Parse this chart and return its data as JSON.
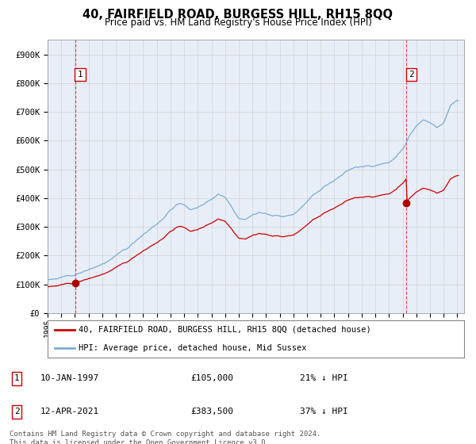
{
  "title": "40, FAIRFIELD ROAD, BURGESS HILL, RH15 8QQ",
  "subtitle": "Price paid vs. HM Land Registry's House Price Index (HPI)",
  "sale1_year": 1997.042,
  "sale1_value": 105000,
  "sale1_label": "1",
  "sale1_annotation": "10-JAN-1997",
  "sale1_price": "£105,000",
  "sale1_hpi": "21% ↓ HPI",
  "sale2_year": 2021.28,
  "sale2_value": 383500,
  "sale2_label": "2",
  "sale2_annotation": "12-APR-2021",
  "sale2_price": "£383,500",
  "sale2_hpi": "37% ↓ HPI",
  "vline_color": "#cc0000",
  "hpi_color": "#7aadd4",
  "price_color": "#cc0000",
  "dot_color": "#aa0000",
  "ylim": [
    0,
    950000
  ],
  "xlim": [
    1995.0,
    2025.5
  ],
  "ytick_labels": [
    "£0",
    "£100K",
    "£200K",
    "£300K",
    "£400K",
    "£500K",
    "£600K",
    "£700K",
    "£800K",
    "£900K"
  ],
  "ytick_values": [
    0,
    100000,
    200000,
    300000,
    400000,
    500000,
    600000,
    700000,
    800000,
    900000
  ],
  "xtick_values": [
    1995,
    1996,
    1997,
    1998,
    1999,
    2000,
    2001,
    2002,
    2003,
    2004,
    2005,
    2006,
    2007,
    2008,
    2009,
    2010,
    2011,
    2012,
    2013,
    2014,
    2015,
    2016,
    2017,
    2018,
    2019,
    2020,
    2021,
    2022,
    2023,
    2024,
    2025
  ],
  "legend_property_label": "40, FAIRFIELD ROAD, BURGESS HILL, RH15 8QQ (detached house)",
  "legend_hpi_label": "HPI: Average price, detached house, Mid Sussex",
  "footer_text": "Contains HM Land Registry data © Crown copyright and database right 2024.\nThis data is licensed under the Open Government Licence v3.0.",
  "bg_color": "#ffffff",
  "grid_color": "#cccccc",
  "plot_bg_color": "#e8eef8"
}
